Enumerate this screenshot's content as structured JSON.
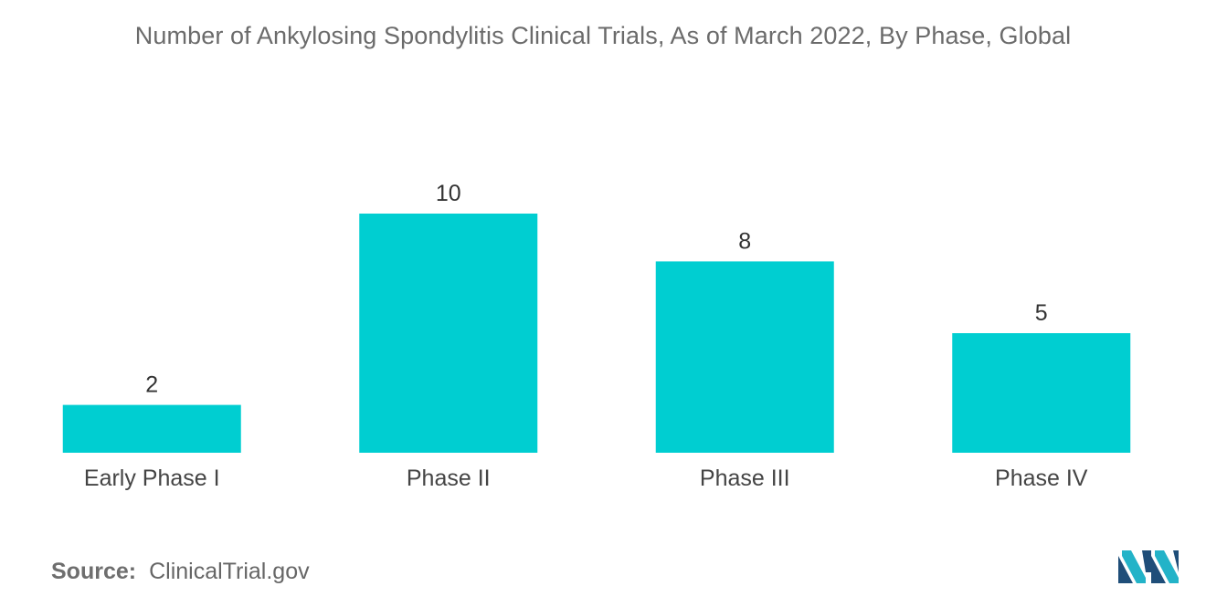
{
  "chart_data": {
    "type": "bar",
    "title": "Number of Ankylosing Spondylitis Clinical Trials, As of March 2022, By Phase, Global",
    "categories": [
      "Early Phase I",
      "Phase II",
      "Phase III",
      "Phase IV"
    ],
    "values": [
      2,
      10,
      8,
      5
    ],
    "xlabel": "",
    "ylabel": "",
    "ylim": [
      0,
      10
    ],
    "grid": false,
    "legend": "none",
    "bar_color": "#00CED1",
    "data_labels": true
  },
  "source": {
    "label": "Source:",
    "value": "ClinicalTrial.gov"
  },
  "logo": {
    "icon": "mordor-intelligence-logo-icon",
    "colors": [
      "#1f4e79",
      "#23b3c8"
    ]
  }
}
